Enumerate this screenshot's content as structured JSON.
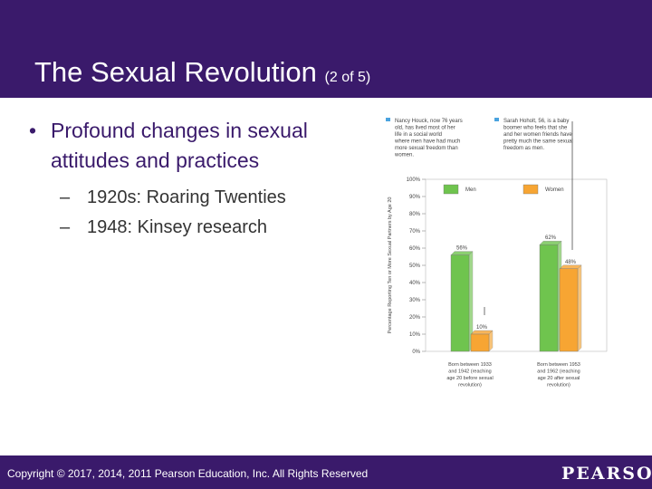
{
  "slide": {
    "title": "The Sexual Revolution",
    "title_suffix": "(2 of 5)",
    "bullet": "Profound changes in sexual attitudes and practices",
    "sub_bullets": [
      "1920s:  Roaring Twenties",
      "1948:  Kinsey research"
    ]
  },
  "footer": {
    "copyright": "Copyright © 2017, 2014, 2011 Pearson Education, Inc. All Rights Reserved",
    "logo": "PEARSON"
  },
  "colors": {
    "brand": "#3a1a6b",
    "men": "#6fc44e",
    "women": "#f7a533",
    "callout": "#4aa3df"
  },
  "chart_data": {
    "type": "bar",
    "ylabel": "Percentage Reporting Ten or More Sexual Partners by Age 20",
    "ylim": [
      0,
      100
    ],
    "yticks": [
      "0%",
      "10%",
      "20%",
      "30%",
      "40%",
      "50%",
      "60%",
      "70%",
      "80%",
      "90%",
      "100%"
    ],
    "categories": [
      "Born between 1933 and 1942 (reaching age 20 before sexual revolution)",
      "Born between 1953 and 1962 (reaching age 20 after sexual revolution)"
    ],
    "series": [
      {
        "name": "Men",
        "values": [
          56,
          62
        ],
        "labels": [
          "56%",
          "62%"
        ]
      },
      {
        "name": "Women",
        "values": [
          10,
          48
        ],
        "labels": [
          "10%",
          "48%"
        ]
      }
    ],
    "callouts": [
      "Nancy Houck, now 76 years old, has lived most of her life in a social world where men have had much more sexual freedom than women.",
      "Sarah Hoholt, 56, is a baby boomer who feels that she and her women friends have pretty much the same sexual freedom as men."
    ]
  }
}
